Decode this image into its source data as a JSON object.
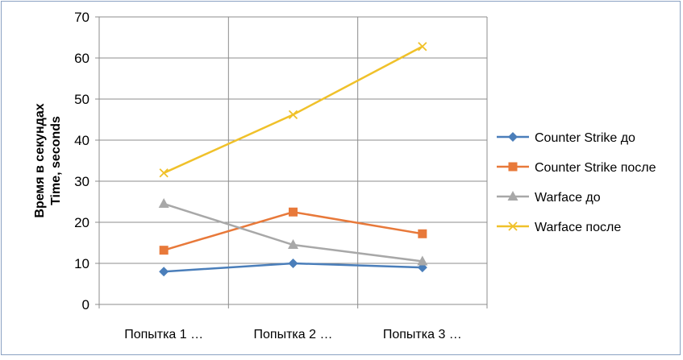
{
  "chart_data": {
    "type": "line",
    "categories": [
      "Попытка 1 …",
      "Попытка 2 …",
      "Попытка 3 …"
    ],
    "ylabel_lines": [
      "Время в секундах",
      "Time, seconds"
    ],
    "xlabel": "",
    "title": "",
    "ylim": [
      0,
      70
    ],
    "yticks": [
      0,
      10,
      20,
      30,
      40,
      50,
      60,
      70
    ],
    "grid": "major vertical and horizontal",
    "legend_position": "right",
    "series": [
      {
        "name": "Counter Strike до",
        "values": [
          8,
          10,
          9
        ],
        "color": "#4a7eba",
        "marker": "diamond"
      },
      {
        "name": "Counter Strike после",
        "values": [
          13.2,
          22.5,
          17.2
        ],
        "color": "#e8793a",
        "marker": "square"
      },
      {
        "name": "Warface до",
        "values": [
          24.5,
          14.5,
          10.5
        ],
        "color": "#a8a8a8",
        "marker": "triangle"
      },
      {
        "name": "Warface после",
        "values": [
          32,
          46.2,
          62.8
        ],
        "color": "#f0c12a",
        "marker": "x"
      }
    ]
  }
}
